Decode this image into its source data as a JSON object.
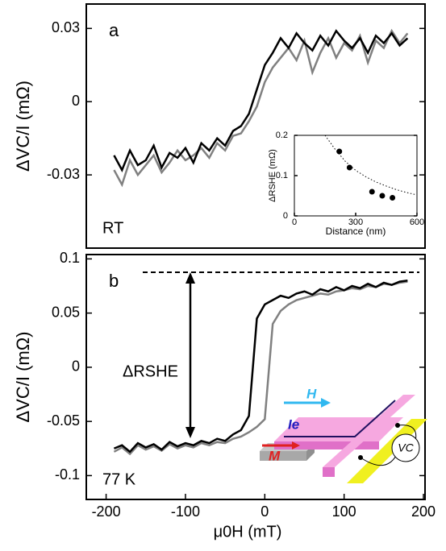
{
  "chart_data": [
    {
      "type": "line",
      "label": "a",
      "annotation": "RT",
      "ylabel": "ΔVC/I (mΩ)",
      "xlim": [
        -225,
        202
      ],
      "ylim": [
        -0.06,
        0.04
      ],
      "yticks": [
        -0.03,
        0,
        0.03
      ],
      "x": [
        -190,
        -180,
        -170,
        -160,
        -150,
        -140,
        -130,
        -120,
        -110,
        -100,
        -90,
        -80,
        -70,
        -60,
        -50,
        -40,
        -30,
        -20,
        -10,
        0,
        10,
        20,
        30,
        40,
        50,
        60,
        70,
        80,
        90,
        100,
        110,
        120,
        130,
        140,
        150,
        160,
        170,
        180
      ],
      "series": [
        {
          "color": "#808080",
          "values": [
            -0.028,
            -0.034,
            -0.024,
            -0.03,
            -0.026,
            -0.022,
            -0.029,
            -0.025,
            -0.02,
            -0.024,
            -0.022,
            -0.019,
            -0.023,
            -0.017,
            -0.02,
            -0.014,
            -0.013,
            -0.008,
            -0.002,
            0.008,
            0.014,
            0.018,
            0.022,
            0.017,
            0.025,
            0.012,
            0.02,
            0.026,
            0.018,
            0.024,
            0.021,
            0.027,
            0.016,
            0.025,
            0.022,
            0.029,
            0.024,
            0.028
          ]
        },
        {
          "color": "#000000",
          "values": [
            -0.022,
            -0.028,
            -0.02,
            -0.026,
            -0.024,
            -0.018,
            -0.027,
            -0.021,
            -0.023,
            -0.019,
            -0.025,
            -0.017,
            -0.02,
            -0.015,
            -0.018,
            -0.012,
            -0.01,
            -0.005,
            0.005,
            0.015,
            0.02,
            0.026,
            0.022,
            0.028,
            0.024,
            0.021,
            0.027,
            0.023,
            0.029,
            0.025,
            0.022,
            0.026,
            0.02,
            0.027,
            0.024,
            0.028,
            0.023,
            0.026
          ]
        }
      ]
    },
    {
      "type": "line",
      "label": "b",
      "annotation": "77 K",
      "delta_label": "ΔRSHE",
      "ylabel": "ΔVC/I (mΩ)",
      "xlabel": "μ0H (mT)",
      "xlim": [
        -225,
        202
      ],
      "ylim": [
        -0.122,
        0.104
      ],
      "xticks": [
        -200,
        -100,
        0,
        100,
        200
      ],
      "yticks": [
        -0.1,
        -0.05,
        0,
        0.05,
        0.1
      ],
      "x": [
        -190,
        -180,
        -170,
        -160,
        -150,
        -140,
        -130,
        -120,
        -110,
        -100,
        -90,
        -80,
        -70,
        -60,
        -50,
        -40,
        -30,
        -20,
        -10,
        0,
        10,
        20,
        30,
        40,
        50,
        60,
        70,
        80,
        90,
        100,
        110,
        120,
        130,
        140,
        150,
        160,
        170,
        180
      ],
      "series": [
        {
          "color": "#808080",
          "values": [
            -0.078,
            -0.074,
            -0.08,
            -0.072,
            -0.076,
            -0.073,
            -0.077,
            -0.071,
            -0.075,
            -0.072,
            -0.074,
            -0.07,
            -0.072,
            -0.069,
            -0.07,
            -0.066,
            -0.064,
            -0.06,
            -0.055,
            -0.048,
            0.04,
            0.052,
            0.058,
            0.062,
            0.064,
            0.066,
            0.068,
            0.067,
            0.07,
            0.071,
            0.073,
            0.072,
            0.075,
            0.074,
            0.077,
            0.076,
            0.078,
            0.079
          ]
        },
        {
          "color": "#000000",
          "values": [
            -0.075,
            -0.072,
            -0.078,
            -0.07,
            -0.074,
            -0.071,
            -0.076,
            -0.069,
            -0.073,
            -0.07,
            -0.072,
            -0.068,
            -0.07,
            -0.066,
            -0.068,
            -0.062,
            -0.058,
            -0.045,
            0.045,
            0.058,
            0.062,
            0.066,
            0.064,
            0.068,
            0.07,
            0.067,
            0.072,
            0.07,
            0.074,
            0.071,
            0.075,
            0.073,
            0.077,
            0.074,
            0.078,
            0.076,
            0.079,
            0.08
          ]
        }
      ]
    },
    {
      "type": "scatter",
      "xlabel": "Distance (nm)",
      "ylabel": "ΔRSHE (mΩ)",
      "xlim": [
        0,
        600
      ],
      "ylim": [
        0,
        0.2
      ],
      "xticks": [
        0,
        300,
        600
      ],
      "yticks": [
        0,
        0.1,
        0.2
      ],
      "x": [
        220,
        270,
        380,
        430,
        480
      ],
      "values": [
        0.16,
        0.12,
        0.06,
        0.05,
        0.045
      ],
      "color": "#000000",
      "fit": {
        "x": [
          150,
          200,
          250,
          300,
          350,
          400,
          450,
          500,
          550,
          600
        ],
        "values": [
          0.2,
          0.165,
          0.135,
          0.113,
          0.097,
          0.084,
          0.074,
          0.065,
          0.058,
          0.052
        ]
      }
    }
  ],
  "schematic": {
    "H": "H",
    "Ie": "Ie",
    "M": "M",
    "Vc": "VC"
  }
}
